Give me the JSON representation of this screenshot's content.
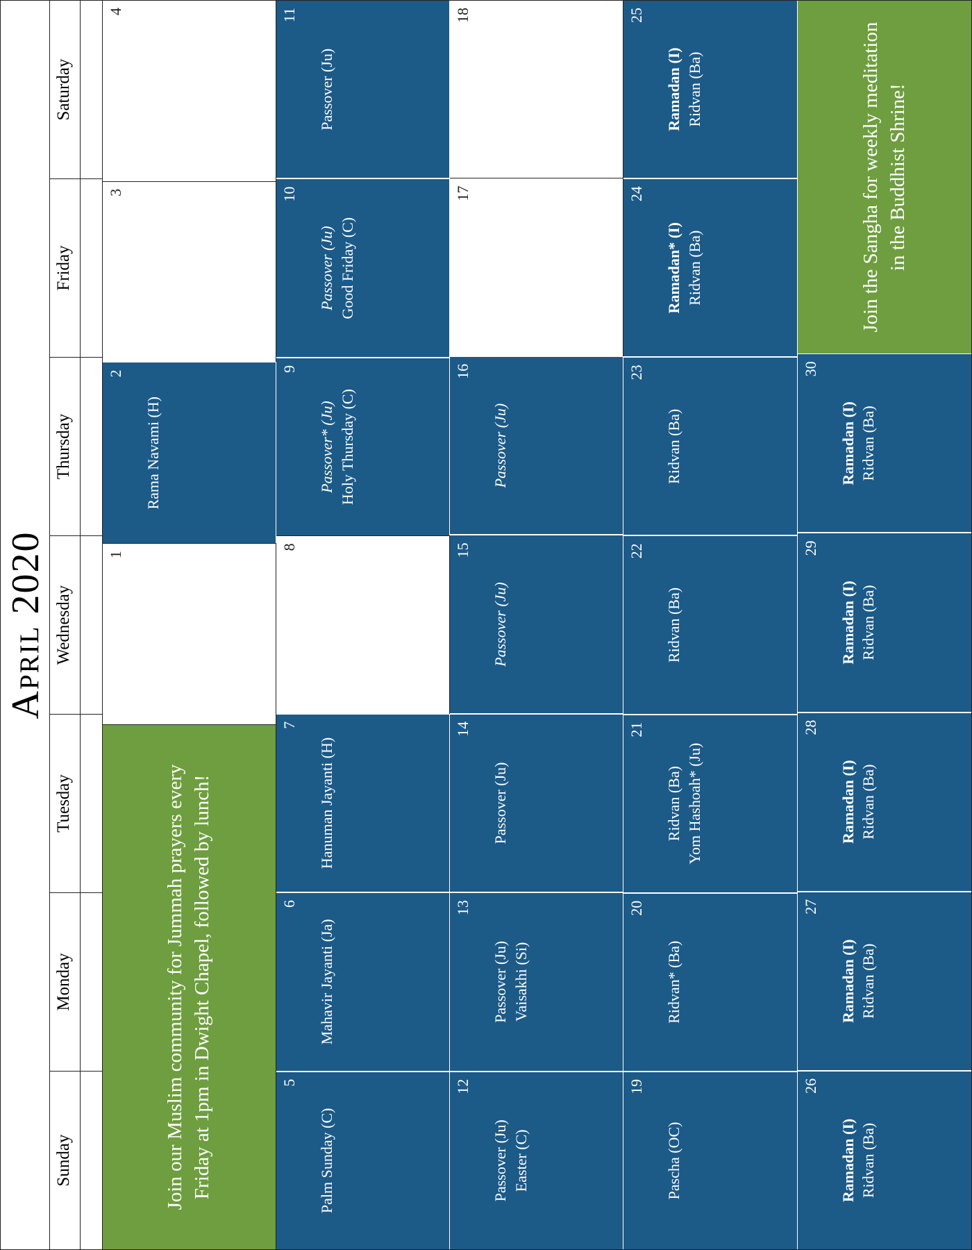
{
  "title": "April 2020",
  "colors": {
    "event_bg": "#1c5a88",
    "banner_bg": "#6e9e3f",
    "text_light": "#ffffff",
    "border": "#222222"
  },
  "typography": {
    "title_fontsize": 56,
    "dow_fontsize": 25,
    "daynum_fontsize": 22,
    "event_fontsize": 22,
    "banner_fontsize": 29
  },
  "daysOfWeek": [
    "Sunday",
    "Monday",
    "Tuesday",
    "Wednesday",
    "Thursday",
    "Friday",
    "Saturday"
  ],
  "banners": {
    "first_week": "Join our Muslim community for Jummah prayers every Friday at 1pm in Dwight Chapel, followed by lunch!",
    "last_week": "Join the Sangha for weekly meditation in the Buddhist Shrine!"
  },
  "weeks": [
    {
      "cells": [
        {
          "type": "banner",
          "span": 3,
          "key": "first_week"
        },
        {
          "type": "day",
          "n": "1",
          "bg": "white",
          "events": []
        },
        {
          "type": "day",
          "n": "2",
          "bg": "blue",
          "events": [
            {
              "t": "Rama Navami (H)"
            }
          ]
        },
        {
          "type": "day",
          "n": "3",
          "bg": "white",
          "events": []
        },
        {
          "type": "day",
          "n": "4",
          "bg": "white",
          "events": []
        }
      ]
    },
    {
      "cells": [
        {
          "type": "day",
          "n": "5",
          "bg": "blue",
          "events": [
            {
              "t": "Palm Sunday (C)"
            }
          ]
        },
        {
          "type": "day",
          "n": "6",
          "bg": "blue",
          "events": [
            {
              "t": "Mahavir Jayanti (Ja)"
            }
          ]
        },
        {
          "type": "day",
          "n": "7",
          "bg": "blue",
          "events": [
            {
              "t": "Hanuman Jayanti (H)"
            }
          ]
        },
        {
          "type": "day",
          "n": "8",
          "bg": "white",
          "events": []
        },
        {
          "type": "day",
          "n": "9",
          "bg": "blue",
          "events": [
            {
              "t": "Passover* (Ju)",
              "style": "italic"
            },
            {
              "t": "Holy Thursday (C)"
            }
          ]
        },
        {
          "type": "day",
          "n": "10",
          "bg": "blue",
          "events": [
            {
              "t": "Passover (Ju)",
              "style": "italic"
            },
            {
              "t": "Good Friday (C)"
            }
          ]
        },
        {
          "type": "day",
          "n": "11",
          "bg": "blue",
          "events": [
            {
              "t": "Passover (Ju)"
            }
          ]
        }
      ]
    },
    {
      "cells": [
        {
          "type": "day",
          "n": "12",
          "bg": "blue",
          "events": [
            {
              "t": "Passover (Ju)"
            },
            {
              "t": "Easter (C)"
            }
          ]
        },
        {
          "type": "day",
          "n": "13",
          "bg": "blue",
          "events": [
            {
              "t": "Passover (Ju)"
            },
            {
              "t": "Vaisakhi (Si)"
            }
          ]
        },
        {
          "type": "day",
          "n": "14",
          "bg": "blue",
          "events": [
            {
              "t": "Passover (Ju)"
            }
          ]
        },
        {
          "type": "day",
          "n": "15",
          "bg": "blue",
          "events": [
            {
              "t": "Passover (Ju)",
              "style": "italic"
            }
          ]
        },
        {
          "type": "day",
          "n": "16",
          "bg": "blue",
          "events": [
            {
              "t": "Passover (Ju)",
              "style": "italic"
            }
          ]
        },
        {
          "type": "day",
          "n": "17",
          "bg": "white",
          "events": []
        },
        {
          "type": "day",
          "n": "18",
          "bg": "white",
          "events": []
        }
      ]
    },
    {
      "cells": [
        {
          "type": "day",
          "n": "19",
          "bg": "blue",
          "events": [
            {
              "t": "Pascha (OC)"
            }
          ]
        },
        {
          "type": "day",
          "n": "20",
          "bg": "blue",
          "events": [
            {
              "t": "Ridvan* (Ba)"
            }
          ]
        },
        {
          "type": "day",
          "n": "21",
          "bg": "blue",
          "events": [
            {
              "t": "Ridvan (Ba)"
            },
            {
              "t": "Yom Hashoah* (Ju)"
            }
          ]
        },
        {
          "type": "day",
          "n": "22",
          "bg": "blue",
          "events": [
            {
              "t": "Ridvan (Ba)"
            }
          ]
        },
        {
          "type": "day",
          "n": "23",
          "bg": "blue",
          "events": [
            {
              "t": "Ridvan (Ba)"
            }
          ]
        },
        {
          "type": "day",
          "n": "24",
          "bg": "blue",
          "events": [
            {
              "t": "Ramadan* (I)",
              "style": "bold"
            },
            {
              "t": "Ridvan (Ba)"
            }
          ]
        },
        {
          "type": "day",
          "n": "25",
          "bg": "blue",
          "events": [
            {
              "t": "Ramadan (I)",
              "style": "bold"
            },
            {
              "t": "Ridvan (Ba)"
            }
          ]
        }
      ]
    },
    {
      "cells": [
        {
          "type": "day",
          "n": "26",
          "bg": "blue",
          "events": [
            {
              "t": "Ramadan (I)",
              "style": "bold"
            },
            {
              "t": "Ridvan (Ba)"
            }
          ]
        },
        {
          "type": "day",
          "n": "27",
          "bg": "blue",
          "events": [
            {
              "t": "Ramadan (I)",
              "style": "bold"
            },
            {
              "t": "Ridvan (Ba)"
            }
          ]
        },
        {
          "type": "day",
          "n": "28",
          "bg": "blue",
          "events": [
            {
              "t": "Ramadan (I)",
              "style": "bold"
            },
            {
              "t": "Ridvan (Ba)"
            }
          ]
        },
        {
          "type": "day",
          "n": "29",
          "bg": "blue",
          "events": [
            {
              "t": "Ramadan (I)",
              "style": "bold"
            },
            {
              "t": "Ridvan (Ba)"
            }
          ]
        },
        {
          "type": "day",
          "n": "30",
          "bg": "blue",
          "events": [
            {
              "t": "Ramadan (I)",
              "style": "bold"
            },
            {
              "t": "Ridvan (Ba)"
            }
          ]
        },
        {
          "type": "banner",
          "span": 2,
          "key": "last_week"
        }
      ]
    }
  ]
}
